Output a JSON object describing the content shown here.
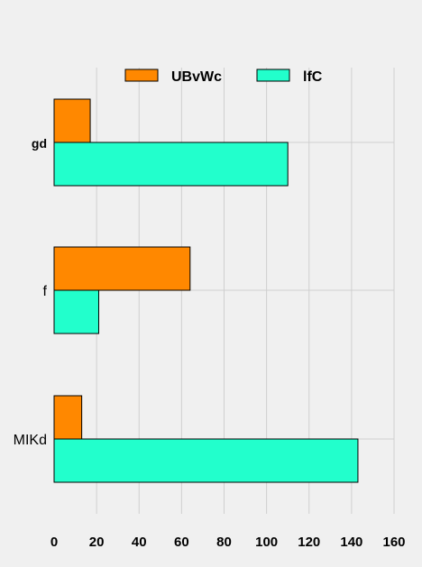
{
  "chart_data": {
    "type": "bar",
    "orientation": "horizontal",
    "categories": [
      "gd",
      "f",
      "MIKd"
    ],
    "series": [
      {
        "name": "UBvWc",
        "values": [
          17,
          64,
          13
        ],
        "color": "#ff8800"
      },
      {
        "name": "lfC",
        "values": [
          110,
          21,
          143
        ],
        "color": "#22ffcc"
      }
    ],
    "xlim": [
      0,
      160
    ],
    "xticks": [
      0,
      20,
      40,
      60,
      80,
      100,
      120,
      140,
      160
    ],
    "xticklabels": [
      "0",
      "20",
      "40",
      "60",
      "80",
      "100",
      "120",
      "140",
      "160"
    ],
    "grid": true,
    "legend_position": "top-center",
    "title": "",
    "xlabel": "",
    "ylabel": ""
  }
}
